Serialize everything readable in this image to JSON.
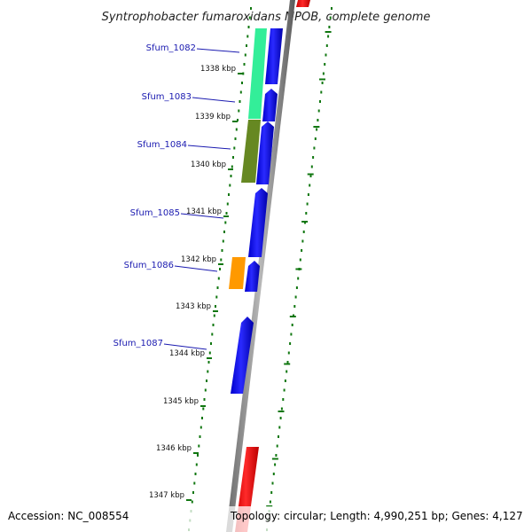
{
  "title": "Syntrophobacter fumaroxidans MPOB, complete genome",
  "footer": {
    "accession": "Accession: NC_008554",
    "topology": "Topology: circular; Length: 4,990,251 bp; Genes: 4,127"
  },
  "colors": {
    "forward_cds": "#0000ee",
    "reverse_teal": "#33ee99",
    "reverse_olive": "#668822",
    "reverse_orange": "#ff9900",
    "rna_red": "#ee0000",
    "backbone": "#888888",
    "gc_dots": "#117711",
    "label_blue": "#1a1ab0"
  },
  "scale": {
    "unit": "kbp",
    "ticks": [
      "1338 kbp",
      "1339 kbp",
      "1340 kbp",
      "1341 kbp",
      "1342 kbp",
      "1343 kbp",
      "1344 kbp",
      "1345 kbp",
      "1346 kbp",
      "1347 kbp"
    ]
  },
  "genes": [
    {
      "label": "Sfum_1082",
      "strand": "forward",
      "color_key": "forward_cds"
    },
    {
      "label": "Sfum_1083",
      "strand": "forward",
      "color_key": "forward_cds"
    },
    {
      "label": "Sfum_1084",
      "strand": "forward",
      "color_key": "forward_cds"
    },
    {
      "label": "Sfum_1085",
      "strand": "forward",
      "color_key": "forward_cds"
    },
    {
      "label": "Sfum_1086",
      "strand": "forward",
      "color_key": "forward_cds"
    },
    {
      "label": "Sfum_1087",
      "strand": "forward",
      "color_key": "forward_cds"
    }
  ]
}
